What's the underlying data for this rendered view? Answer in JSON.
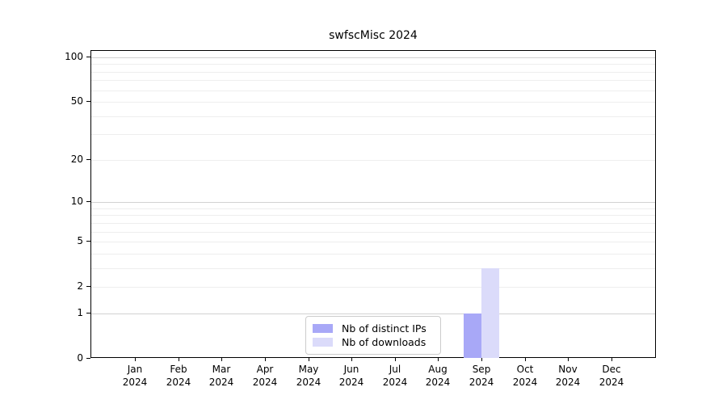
{
  "page": {
    "title": "swfscMisc 2024"
  },
  "chart_data": {
    "type": "bar",
    "title": "swfscMisc 2024",
    "scale": "log1p",
    "grid": true,
    "categories": [
      "Jan",
      "Feb",
      "Mar",
      "Apr",
      "May",
      "Jun",
      "Jul",
      "Aug",
      "Sep",
      "Oct",
      "Nov",
      "Dec"
    ],
    "category_year": "2024",
    "series": [
      {
        "name": "Nb of distinct IPs",
        "color": "#a8a8f7",
        "values": [
          0,
          0,
          0,
          0,
          0,
          0,
          0,
          0,
          1,
          0,
          0,
          0
        ]
      },
      {
        "name": "Nb of downloads",
        "color": "#dbdbfa",
        "values": [
          0,
          0,
          0,
          0,
          0,
          0,
          0,
          0,
          3,
          0,
          0,
          0
        ]
      }
    ],
    "ylim": [
      0,
      110
    ],
    "yticks": [
      0,
      1,
      2,
      5,
      10,
      20,
      50,
      100
    ],
    "gridlines_major": [
      1,
      10,
      100
    ],
    "gridlines_minor": [
      2,
      3,
      4,
      5,
      6,
      7,
      8,
      9,
      20,
      30,
      40,
      50,
      60,
      70,
      80,
      90
    ],
    "legend_position": "lower-center",
    "xlabel": "",
    "ylabel": ""
  },
  "colors": {
    "axis": "#000000",
    "grid_major": "#d2d2d2",
    "grid_minor": "#eeeeee",
    "legend_border": "#cccccc",
    "background": "#ffffff"
  }
}
